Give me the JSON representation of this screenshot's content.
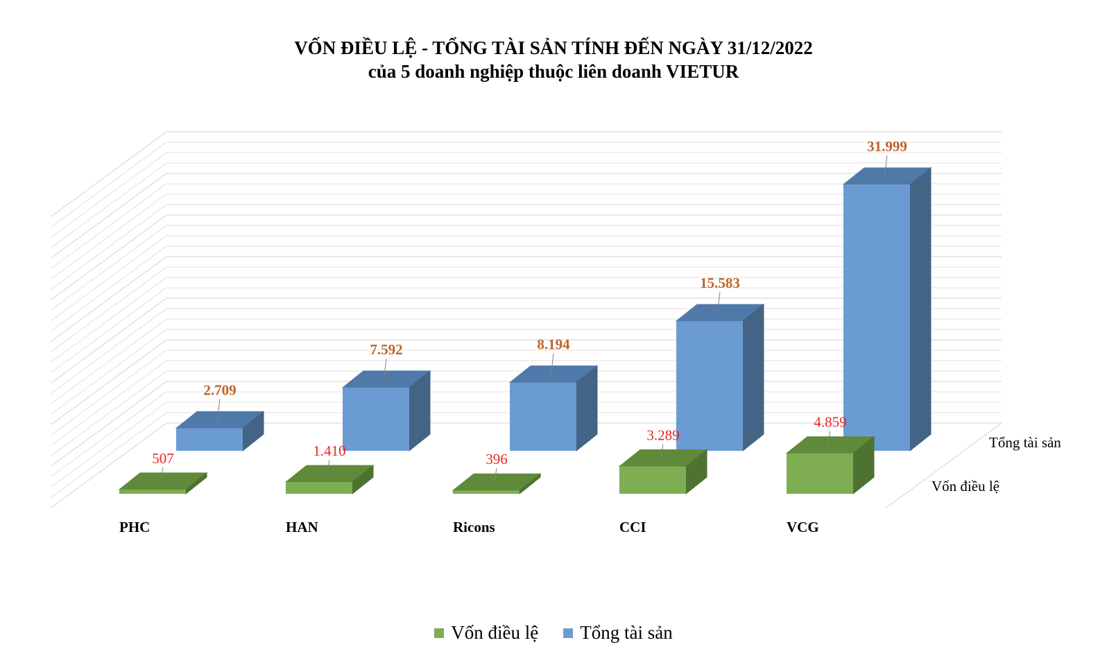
{
  "title_line1": "VỐN ĐIỀU LỆ - TỔNG TÀI SẢN TÍNH ĐẾN NGÀY 31/12/2022",
  "title_line2": "của 5 doanh nghiệp thuộc liên doanh VIETUR",
  "colors": {
    "von_front": "#7ead52",
    "von_top": "#5f8a3a",
    "von_side": "#4e7330",
    "tong_front": "#6b9bd3",
    "tong_top": "#4f79a8",
    "tong_side": "#436485",
    "label_von": "#e8261f",
    "label_tong": "#c0632a",
    "grid": "#d9d9d9"
  },
  "chart_data": {
    "type": "bar",
    "style": "3d-clustered-columns",
    "title": "VỐN ĐIỀU LỆ - TỔNG TÀI SẢN TÍNH ĐẾN NGÀY 31/12/2022 của 5 doanh nghiệp thuộc liên doanh VIETUR",
    "categories": [
      "PHC",
      "HAN",
      "Ricons",
      "CCI",
      "VCG"
    ],
    "series": [
      {
        "name": "Vốn điều lệ",
        "values": [
          507,
          1410,
          396,
          3289,
          4859
        ],
        "labels": [
          "507",
          "1.410",
          "396",
          "3.289",
          "4.859"
        ]
      },
      {
        "name": "Tổng tài sản",
        "values": [
          2709,
          7592,
          8194,
          15583,
          31999
        ],
        "labels": [
          "2.709",
          "7.592",
          "8.194",
          "15.583",
          "31.999"
        ]
      }
    ],
    "depth_labels": [
      "Tổng tài sản",
      "Vốn điều lệ"
    ],
    "ylim": [
      0,
      35000
    ],
    "grid": true,
    "legend": "bottom"
  }
}
